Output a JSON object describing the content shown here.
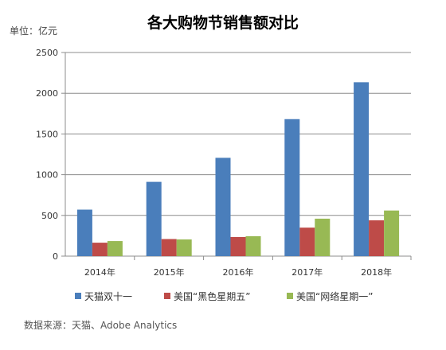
{
  "title": "各大购物节销售额对比",
  "unit_label": "单位：亿元",
  "source": "数据来源：天猫、Adobe Analytics",
  "chart_data": {
    "type": "bar",
    "title": "各大购物节销售额对比",
    "xlabel": "",
    "ylabel": "单位：亿元",
    "ylim": [
      0,
      2500
    ],
    "yticks": [
      0,
      500,
      1000,
      1500,
      2000,
      2500
    ],
    "grid": true,
    "legend_position": "bottom",
    "categories": [
      "2014年",
      "2015年",
      "2016年",
      "2017年",
      "2018年"
    ],
    "series": [
      {
        "name": "天猫双十一",
        "color": "#4a7ebb",
        "values": [
          571,
          912,
          1207,
          1682,
          2135
        ]
      },
      {
        "name": "美国“黑色星期五”",
        "color": "#be4b48",
        "values": [
          165,
          210,
          235,
          350,
          440
        ]
      },
      {
        "name": "美国“网络星期一”",
        "color": "#98b954",
        "values": [
          185,
          205,
          245,
          460,
          560
        ]
      }
    ]
  }
}
